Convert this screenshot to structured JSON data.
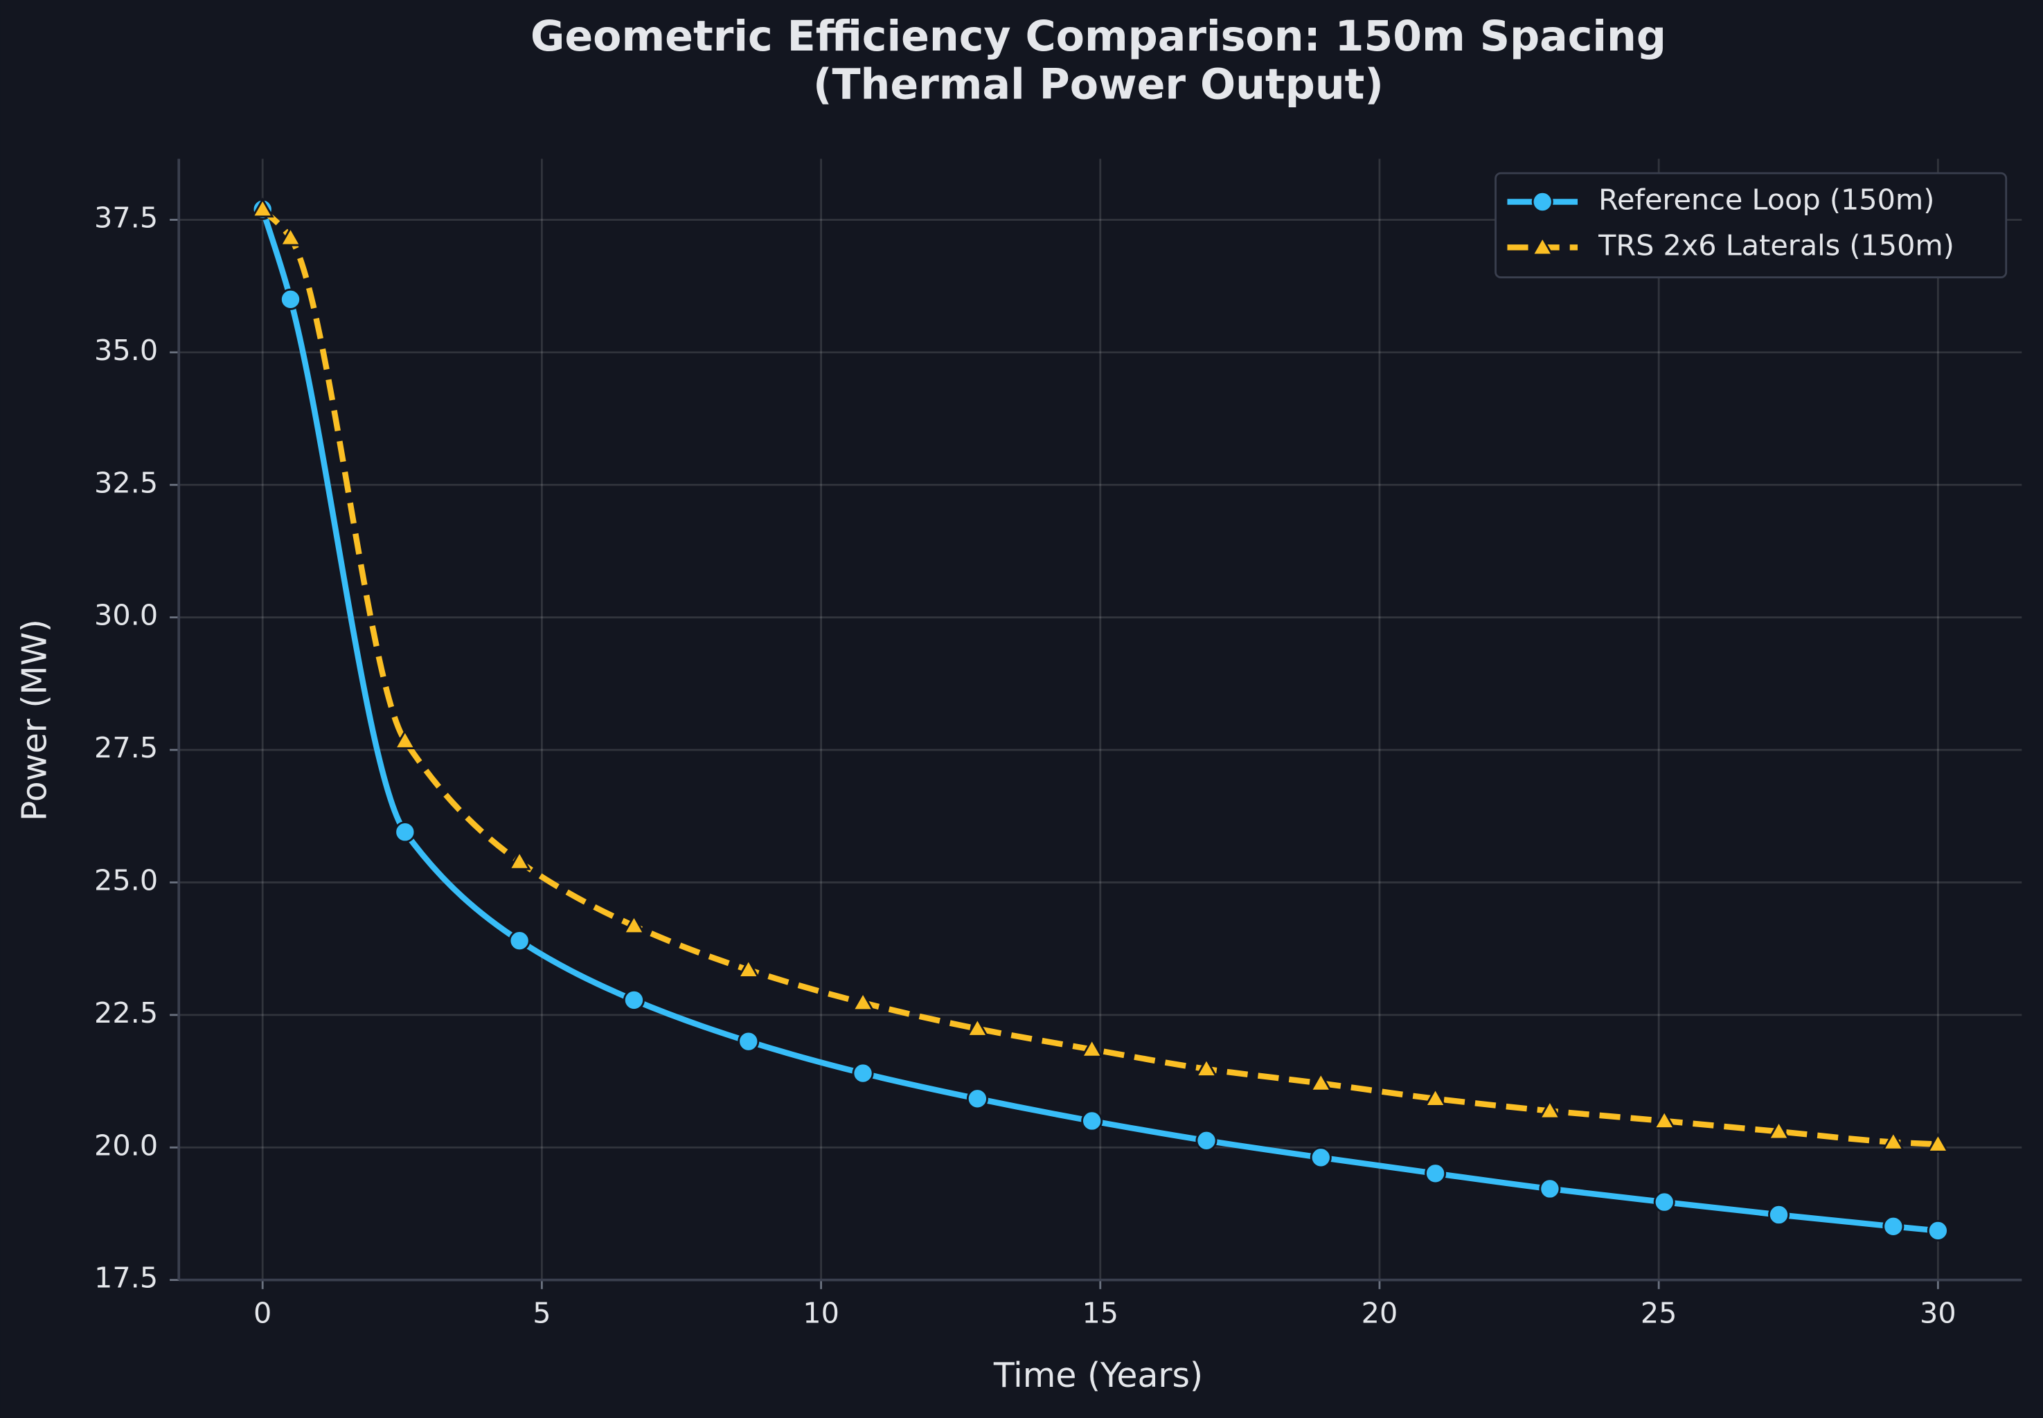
{
  "chart_data": {
    "type": "line",
    "title": [
      "Geometric Efficiency Comparison: 150m Spacing",
      "(Thermal Power Output)"
    ],
    "x_label": "Time (Years)",
    "y_label": "Power (MW)",
    "x": [
      0,
      0.5,
      2.55,
      4.6,
      6.65,
      8.7,
      10.75,
      12.8,
      14.85,
      16.9,
      18.95,
      21,
      23.05,
      25.1,
      27.15,
      29.2,
      30
    ],
    "series": [
      {
        "name": "Reference Loop (150m)",
        "color": "#38bdf8",
        "marker": "circle",
        "dashed": false,
        "values": [
          37.7,
          36.0,
          25.95,
          23.9,
          22.78,
          22.0,
          21.4,
          20.92,
          20.5,
          20.13,
          19.81,
          19.51,
          19.22,
          18.97,
          18.73,
          18.51,
          18.43
        ]
      },
      {
        "name": "TRS 2x6 Laterals (150m)",
        "color": "#fbbf24",
        "marker": "triangle",
        "dashed": true,
        "values": [
          37.7,
          37.16,
          27.67,
          25.39,
          24.18,
          23.35,
          22.73,
          22.24,
          21.85,
          21.48,
          21.21,
          20.92,
          20.69,
          20.5,
          20.3,
          20.1,
          20.06
        ]
      }
    ],
    "xlim": [
      -1.5,
      31.5
    ],
    "xticks": [
      0,
      5,
      10,
      15,
      20,
      25,
      30
    ],
    "ylim": [
      17.5,
      38.65
    ],
    "yticks": [
      {
        "value": 17.5,
        "label": "17.5"
      },
      {
        "value": 20,
        "label": "20.0"
      },
      {
        "value": 22.5,
        "label": "22.5"
      },
      {
        "value": 25,
        "label": "25.0"
      },
      {
        "value": 27.5,
        "label": "27.5"
      },
      {
        "value": 30,
        "label": "30.0"
      },
      {
        "value": 32.5,
        "label": "32.5"
      },
      {
        "value": 35,
        "label": "35.0"
      },
      {
        "value": 37.5,
        "label": "37.5"
      }
    ],
    "grid": true,
    "legend": "upper right"
  }
}
